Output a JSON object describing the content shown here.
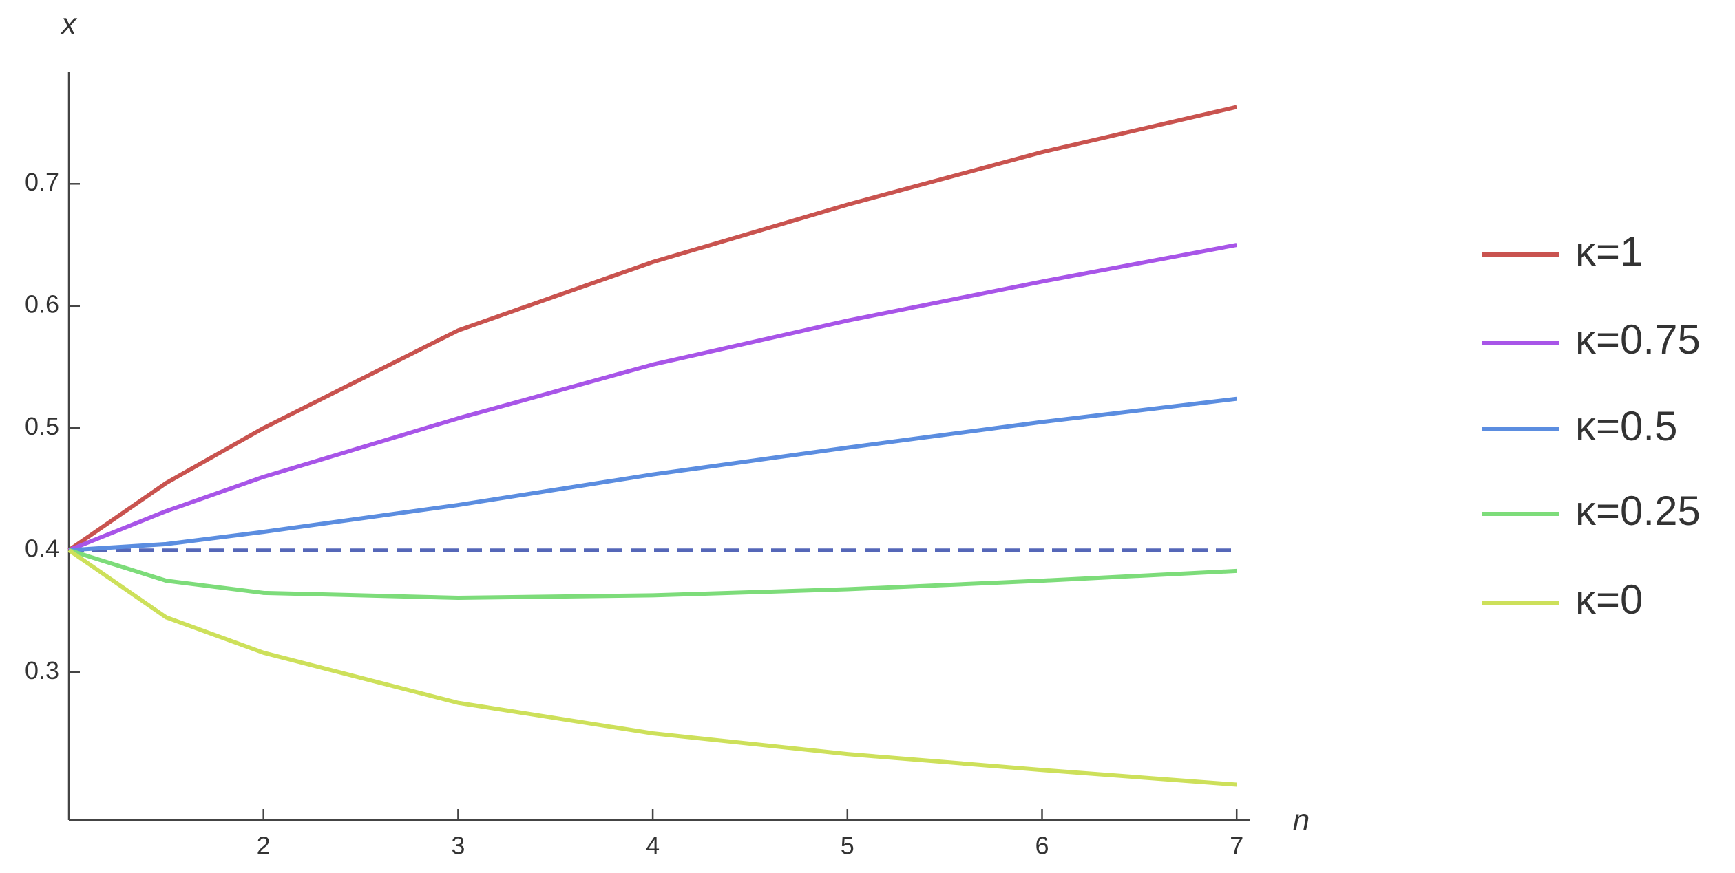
{
  "chart_data": {
    "type": "line",
    "x_label": "n",
    "y_label": "x",
    "x": [
      1,
      1.5,
      2,
      3,
      4,
      5,
      6,
      7
    ],
    "series": [
      {
        "name": "κ=1",
        "color": "#c9534f",
        "values": [
          0.4,
          0.455,
          0.5,
          0.58,
          0.636,
          0.683,
          0.726,
          0.763
        ]
      },
      {
        "name": "κ=0.75",
        "color": "#a855e8",
        "values": [
          0.4,
          0.432,
          0.46,
          0.508,
          0.552,
          0.588,
          0.62,
          0.65
        ]
      },
      {
        "name": "κ=0.5",
        "color": "#5b8de0",
        "values": [
          0.4,
          0.405,
          0.415,
          0.437,
          0.462,
          0.484,
          0.505,
          0.524
        ]
      },
      {
        "name": "κ=0.25",
        "color": "#7ddc7a",
        "values": [
          0.4,
          0.375,
          0.365,
          0.361,
          0.363,
          0.368,
          0.375,
          0.383
        ]
      },
      {
        "name": "κ=0",
        "color": "#cde05a",
        "values": [
          0.4,
          0.345,
          0.316,
          0.275,
          0.25,
          0.233,
          0.22,
          0.208
        ]
      }
    ],
    "hlines": [
      {
        "y": 0.4,
        "color": "#5567b8",
        "style": "dashed"
      }
    ],
    "xlim": [
      1,
      7.07
    ],
    "ylim": [
      0.179,
      0.792
    ],
    "xticks": [
      2,
      3,
      4,
      5,
      6,
      7
    ],
    "yticks": [
      0.3,
      0.4,
      0.5,
      0.6,
      0.7
    ],
    "legend": "right"
  }
}
